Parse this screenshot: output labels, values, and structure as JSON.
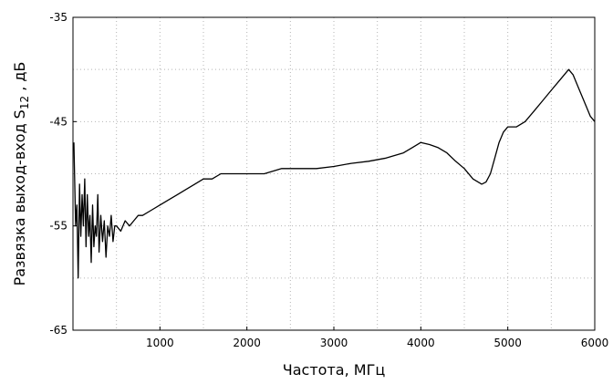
{
  "chart_data": {
    "type": "line",
    "xlabel": "Частота, МГц",
    "ylabel_prefix": "Развязка выход-вход S",
    "ylabel_subscript": "12",
    "ylabel_suffix": " , дБ",
    "xlim": [
      0,
      6000
    ],
    "ylim": [
      -65,
      -35
    ],
    "xticks": [
      1000,
      2000,
      3000,
      4000,
      5000,
      6000
    ],
    "xtick_labels": [
      "1000",
      "2000",
      "3000",
      "4000",
      "5000",
      "6000"
    ],
    "yticks": [
      -35,
      -45,
      -55,
      -65
    ],
    "ytick_labels": [
      "-35",
      "-45",
      "-55",
      "-65"
    ],
    "grid": true,
    "series": [
      {
        "x": [
          10,
          30,
          45,
          60,
          75,
          90,
          105,
          120,
          135,
          150,
          165,
          180,
          195,
          210,
          225,
          240,
          255,
          270,
          285,
          300,
          320,
          340,
          360,
          380,
          400,
          420,
          440,
          460,
          480,
          500,
          550,
          600,
          650,
          700,
          750,
          800,
          900,
          1000,
          1100,
          1200,
          1300,
          1400,
          1500,
          1600,
          1700,
          1800,
          1900,
          2000,
          2200,
          2400,
          2600,
          2800,
          3000,
          3200,
          3400,
          3600,
          3800,
          3900,
          4000,
          4100,
          4200,
          4300,
          4400,
          4500,
          4600,
          4700,
          4750,
          4800,
          4850,
          4900,
          4950,
          5000,
          5050,
          5100,
          5200,
          5300,
          5400,
          5500,
          5600,
          5650,
          5700,
          5750,
          5800,
          5850,
          5900,
          5950,
          6000
        ],
        "values": [
          -47,
          -55,
          -53,
          -60,
          -51,
          -56,
          -52,
          -55,
          -50.5,
          -57,
          -52,
          -56,
          -54,
          -58.5,
          -53,
          -57,
          -55,
          -56,
          -52,
          -57.5,
          -54,
          -56.5,
          -54.5,
          -58,
          -55,
          -56,
          -54,
          -56.5,
          -55,
          -55,
          -55.5,
          -54.5,
          -55,
          -54.5,
          -54,
          -54,
          -53.5,
          -53,
          -52.5,
          -52,
          -51.5,
          -51,
          -50.5,
          -50.5,
          -50,
          -50,
          -50,
          -50,
          -50,
          -49.5,
          -49.5,
          -49.5,
          -49.3,
          -49,
          -48.8,
          -48.5,
          -48,
          -47.5,
          -47,
          -47.2,
          -47.5,
          -48,
          -48.8,
          -49.5,
          -50.5,
          -51,
          -50.8,
          -50,
          -48.5,
          -47,
          -46,
          -45.5,
          -45.5,
          -45.5,
          -45,
          -44,
          -43,
          -42,
          -41,
          -40.5,
          -40,
          -40.5,
          -41.5,
          -42.5,
          -43.5,
          -44.5,
          -45
        ]
      }
    ]
  }
}
